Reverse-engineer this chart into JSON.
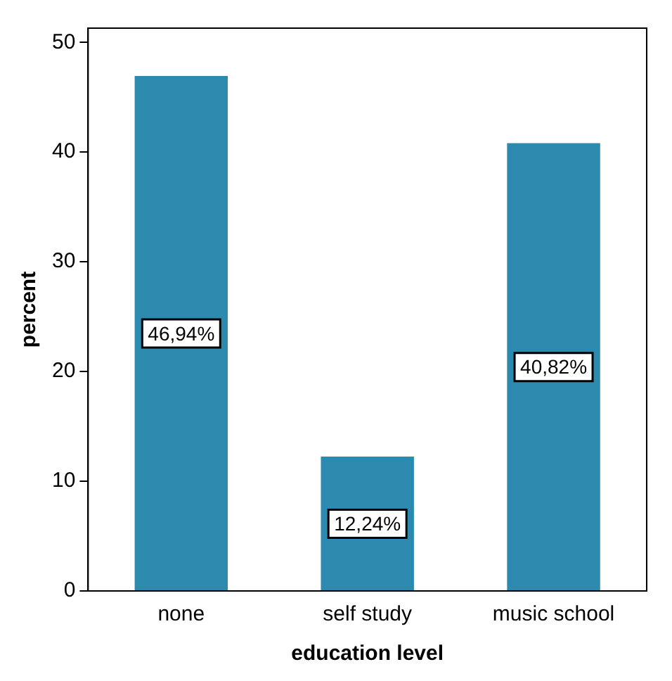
{
  "chart_data": {
    "type": "bar",
    "xlabel": "education level",
    "ylabel": "percent",
    "categories": [
      "none",
      "self study",
      "music school"
    ],
    "values": [
      46.94,
      12.24,
      40.82
    ],
    "value_labels": [
      "46,94%",
      "12,24%",
      "40,82%"
    ],
    "color": "#2b8aae",
    "ylim": [
      0,
      51.3
    ],
    "yticks": [
      0,
      10,
      20,
      30,
      40,
      50
    ],
    "grid": false,
    "legend": false
  }
}
